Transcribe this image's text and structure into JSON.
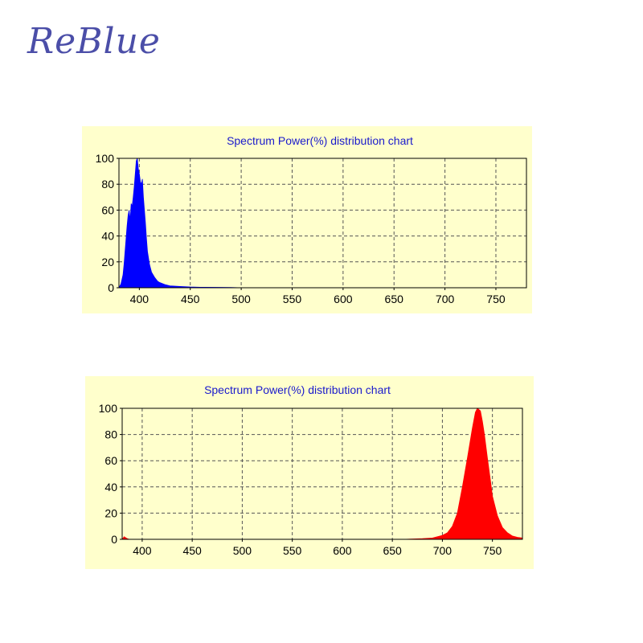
{
  "brand": {
    "logo_text": "ReBlue"
  },
  "chart_data": [
    {
      "type": "area",
      "title": "Spectrum Power(%) distribution chart",
      "xlabel": "",
      "ylabel": "",
      "xlim": [
        380,
        780
      ],
      "ylim": [
        0,
        100
      ],
      "x_ticks": [
        400,
        450,
        500,
        550,
        600,
        650,
        700,
        750
      ],
      "y_ticks": [
        0,
        20,
        40,
        60,
        80,
        100
      ],
      "grid": true,
      "background_color": "#ffffcc",
      "fill_color": "#0000ff",
      "series": [
        {
          "x": [
            380,
            382,
            384,
            385,
            386,
            387,
            388,
            389,
            390,
            391,
            392,
            393,
            394,
            395,
            396,
            397,
            398,
            399,
            400,
            401,
            402,
            403,
            404,
            405,
            406,
            407,
            408,
            410,
            412,
            415,
            418,
            420,
            425,
            430,
            440,
            450,
            460,
            480,
            490,
            500
          ],
          "y": [
            0,
            3,
            10,
            18,
            28,
            38,
            48,
            56,
            60,
            52,
            65,
            63,
            70,
            78,
            88,
            98,
            100,
            92,
            88,
            82,
            80,
            84,
            70,
            60,
            50,
            38,
            28,
            18,
            12,
            8,
            5,
            4,
            2.5,
            1.5,
            1,
            0.6,
            0.4,
            0.3,
            0.2,
            0
          ]
        }
      ]
    },
    {
      "type": "area",
      "title": "Spectrum Power(%) distribution chart",
      "xlabel": "",
      "ylabel": "",
      "xlim": [
        380,
        780
      ],
      "ylim": [
        0,
        100
      ],
      "x_ticks": [
        400,
        450,
        500,
        550,
        600,
        650,
        700,
        750
      ],
      "y_ticks": [
        0,
        20,
        40,
        60,
        80,
        100
      ],
      "grid": true,
      "background_color": "#ffffcc",
      "fill_color": "#ff0000",
      "series": [
        {
          "x": [
            380,
            382,
            385,
            387,
            390,
            660,
            680,
            690,
            700,
            705,
            710,
            715,
            720,
            725,
            730,
            733,
            735,
            738,
            740,
            742,
            745,
            748,
            750,
            755,
            760,
            765,
            770,
            775,
            780
          ],
          "y": [
            0,
            2,
            0.5,
            0,
            0,
            0,
            0.5,
            1,
            3,
            5,
            10,
            20,
            40,
            62,
            85,
            97,
            100,
            98,
            90,
            80,
            62,
            45,
            33,
            18,
            9,
            5,
            2.5,
            1.5,
            1
          ]
        }
      ]
    }
  ]
}
